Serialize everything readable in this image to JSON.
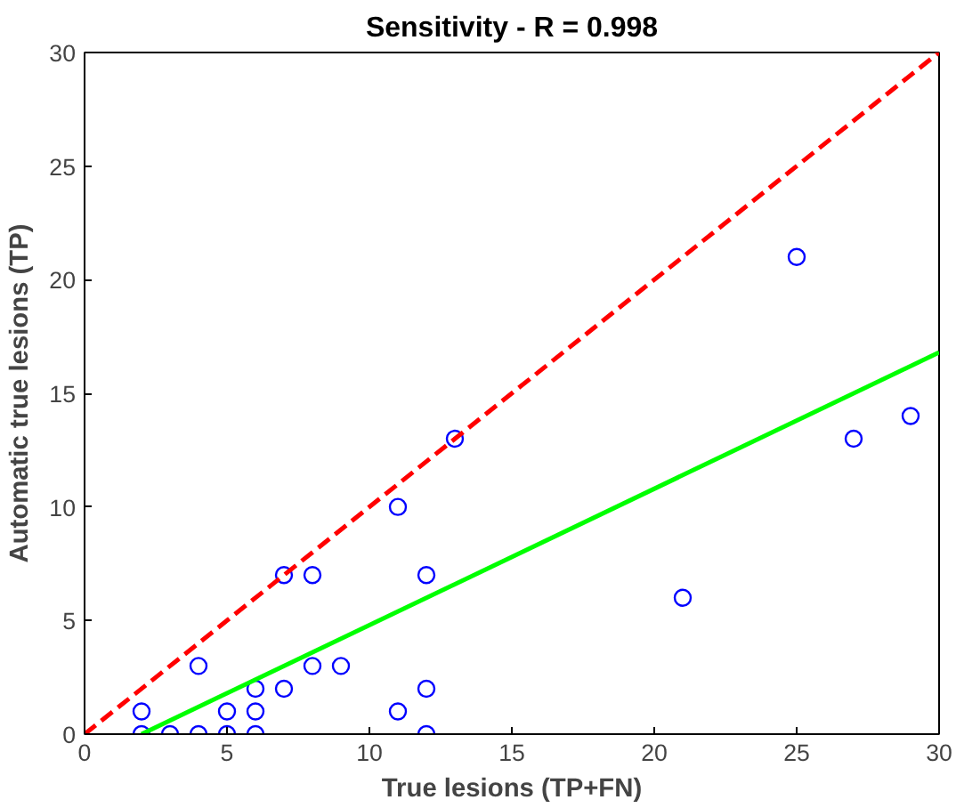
{
  "chart_data": {
    "type": "scatter",
    "title": "Sensitivity - R = 0.998",
    "xlabel": "True lesions (TP+FN)",
    "ylabel": "Automatic true lesions (TP)",
    "xlim": [
      0,
      30
    ],
    "ylim": [
      0,
      30
    ],
    "xticks": [
      0,
      5,
      10,
      15,
      20,
      25,
      30
    ],
    "yticks": [
      0,
      5,
      10,
      15,
      20,
      25,
      30
    ],
    "grid": false,
    "series": [
      {
        "color": "#0000ff",
        "marker": "circle",
        "x": [
          2,
          2,
          3,
          4,
          4,
          5,
          5,
          6,
          6,
          6,
          7,
          7,
          8,
          8,
          9,
          11,
          11,
          12,
          12,
          12,
          13,
          21,
          25,
          27,
          29
        ],
        "values": [
          0,
          1,
          0,
          0,
          3,
          0,
          1,
          0,
          1,
          2,
          2,
          7,
          3,
          7,
          3,
          10,
          1,
          7,
          2,
          0,
          13,
          6,
          21,
          13,
          14
        ]
      },
      {
        "type": "line",
        "color": "#00ff00",
        "line_style": "solid",
        "x": [
          2,
          30
        ],
        "values": [
          0,
          16.8
        ]
      },
      {
        "type": "line",
        "color": "#ff0000",
        "line_style": "dashed",
        "x": [
          0,
          30
        ],
        "values": [
          0,
          30
        ]
      }
    ]
  }
}
